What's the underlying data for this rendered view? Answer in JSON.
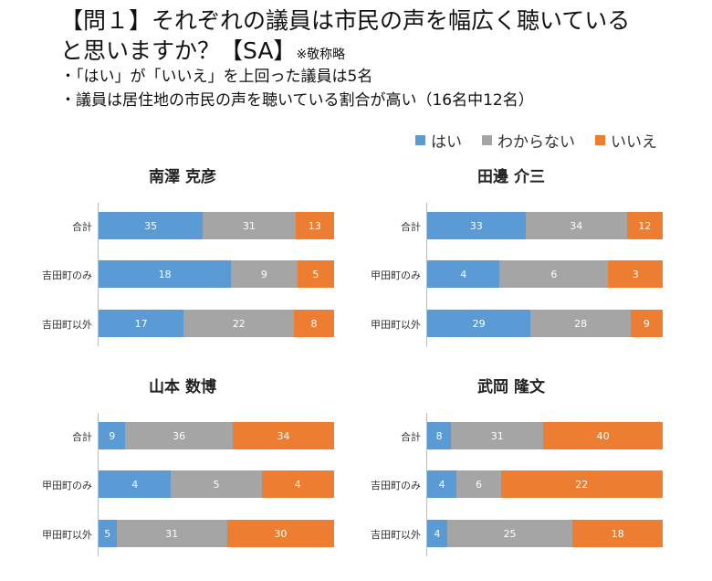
{
  "header": {
    "title_line1": "【問１】それぞれの議員は市民の声を幅広く聴いている",
    "title_line2": "と思いますか？【SA】",
    "title_note": "※敬称略",
    "bullet1": "・「はい」が「いいえ」を上回った議員は5名",
    "bullet2": "・議員は居住地の市民の声を聴いている割合が高い（16名中12名）"
  },
  "legend": [
    {
      "label": "はい",
      "color": "#5b9bd5"
    },
    {
      "label": "わからない",
      "color": "#a5a5a5"
    },
    {
      "label": "いいえ",
      "color": "#ed7d31"
    }
  ],
  "chart_data": [
    {
      "type": "bar",
      "stacked": "percent",
      "orientation": "horizontal",
      "title": "南澤 克彦",
      "categories": [
        "合計",
        "吉田町のみ",
        "吉田町以外"
      ],
      "series": [
        {
          "name": "はい",
          "values": [
            35,
            18,
            17
          ]
        },
        {
          "name": "わからない",
          "values": [
            31,
            9,
            22
          ]
        },
        {
          "name": "いいえ",
          "values": [
            13,
            5,
            8
          ]
        }
      ]
    },
    {
      "type": "bar",
      "stacked": "percent",
      "orientation": "horizontal",
      "title": "田邊 介三",
      "categories": [
        "合計",
        "甲田町のみ",
        "甲田町以外"
      ],
      "series": [
        {
          "name": "はい",
          "values": [
            33,
            4,
            29
          ]
        },
        {
          "name": "わからない",
          "values": [
            34,
            6,
            28
          ]
        },
        {
          "name": "いいえ",
          "values": [
            12,
            3,
            9
          ]
        }
      ]
    },
    {
      "type": "bar",
      "stacked": "percent",
      "orientation": "horizontal",
      "title": "山本 数博",
      "categories": [
        "合計",
        "甲田町のみ",
        "甲田町以外"
      ],
      "series": [
        {
          "name": "はい",
          "values": [
            9,
            4,
            5
          ]
        },
        {
          "name": "わからない",
          "values": [
            36,
            5,
            31
          ]
        },
        {
          "name": "いいえ",
          "values": [
            34,
            4,
            30
          ]
        }
      ]
    },
    {
      "type": "bar",
      "stacked": "percent",
      "orientation": "horizontal",
      "title": "武岡 隆文",
      "categories": [
        "合計",
        "吉田町のみ",
        "吉田町以外"
      ],
      "series": [
        {
          "name": "はい",
          "values": [
            8,
            4,
            4
          ]
        },
        {
          "name": "わからない",
          "values": [
            31,
            6,
            25
          ]
        },
        {
          "name": "いいえ",
          "values": [
            40,
            22,
            18
          ]
        }
      ]
    }
  ]
}
